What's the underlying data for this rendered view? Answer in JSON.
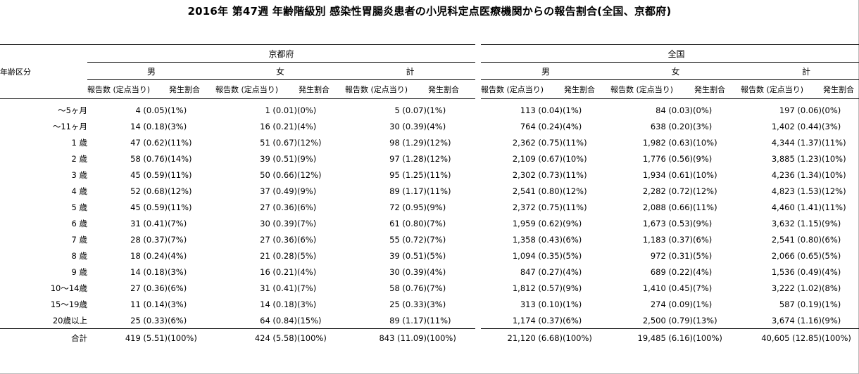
{
  "title": "2016年 第47週 年齢階級別 感染性胃腸炎患者の小児科定点医療機関からの報告割合(全国、京都府)",
  "header": {
    "age_label": "年齢区分",
    "regions": [
      "京都府",
      "全国"
    ],
    "sexes": [
      "男",
      "女",
      "計"
    ],
    "count_label": "報告数 (定点当り)",
    "rate_label": "発生割合"
  },
  "rows": [
    {
      "age": "～5ヶ月",
      "kyoto": [
        [
          "4 (0.05)",
          "(1%)"
        ],
        [
          "1 (0.01)",
          "(0%)"
        ],
        [
          "5 (0.07)",
          "(1%)"
        ]
      ],
      "national": [
        [
          "113 (0.04)",
          "(1%)"
        ],
        [
          "84 (0.03)",
          "(0%)"
        ],
        [
          "197 (0.06)",
          "(0%)"
        ]
      ]
    },
    {
      "age": "～11ヶ月",
      "kyoto": [
        [
          "14 (0.18)",
          "(3%)"
        ],
        [
          "16 (0.21)",
          "(4%)"
        ],
        [
          "30 (0.39)",
          "(4%)"
        ]
      ],
      "national": [
        [
          "764 (0.24)",
          "(4%)"
        ],
        [
          "638 (0.20)",
          "(3%)"
        ],
        [
          "1,402 (0.44)",
          "(3%)"
        ]
      ]
    },
    {
      "age": "1 歳",
      "kyoto": [
        [
          "47 (0.62)",
          "(11%)"
        ],
        [
          "51 (0.67)",
          "(12%)"
        ],
        [
          "98 (1.29)",
          "(12%)"
        ]
      ],
      "national": [
        [
          "2,362 (0.75)",
          "(11%)"
        ],
        [
          "1,982 (0.63)",
          "(10%)"
        ],
        [
          "4,344 (1.37)",
          "(11%)"
        ]
      ]
    },
    {
      "age": "2 歳",
      "kyoto": [
        [
          "58 (0.76)",
          "(14%)"
        ],
        [
          "39 (0.51)",
          "(9%)"
        ],
        [
          "97 (1.28)",
          "(12%)"
        ]
      ],
      "national": [
        [
          "2,109 (0.67)",
          "(10%)"
        ],
        [
          "1,776 (0.56)",
          "(9%)"
        ],
        [
          "3,885 (1.23)",
          "(10%)"
        ]
      ]
    },
    {
      "age": "3 歳",
      "kyoto": [
        [
          "45 (0.59)",
          "(11%)"
        ],
        [
          "50 (0.66)",
          "(12%)"
        ],
        [
          "95 (1.25)",
          "(11%)"
        ]
      ],
      "national": [
        [
          "2,302 (0.73)",
          "(11%)"
        ],
        [
          "1,934 (0.61)",
          "(10%)"
        ],
        [
          "4,236 (1.34)",
          "(10%)"
        ]
      ]
    },
    {
      "age": "4 歳",
      "kyoto": [
        [
          "52 (0.68)",
          "(12%)"
        ],
        [
          "37 (0.49)",
          "(9%)"
        ],
        [
          "89 (1.17)",
          "(11%)"
        ]
      ],
      "national": [
        [
          "2,541 (0.80)",
          "(12%)"
        ],
        [
          "2,282 (0.72)",
          "(12%)"
        ],
        [
          "4,823 (1.53)",
          "(12%)"
        ]
      ]
    },
    {
      "age": "5 歳",
      "kyoto": [
        [
          "45 (0.59)",
          "(11%)"
        ],
        [
          "27 (0.36)",
          "(6%)"
        ],
        [
          "72 (0.95)",
          "(9%)"
        ]
      ],
      "national": [
        [
          "2,372 (0.75)",
          "(11%)"
        ],
        [
          "2,088 (0.66)",
          "(11%)"
        ],
        [
          "4,460 (1.41)",
          "(11%)"
        ]
      ]
    },
    {
      "age": "6 歳",
      "kyoto": [
        [
          "31 (0.41)",
          "(7%)"
        ],
        [
          "30 (0.39)",
          "(7%)"
        ],
        [
          "61 (0.80)",
          "(7%)"
        ]
      ],
      "national": [
        [
          "1,959 (0.62)",
          "(9%)"
        ],
        [
          "1,673 (0.53)",
          "(9%)"
        ],
        [
          "3,632 (1.15)",
          "(9%)"
        ]
      ]
    },
    {
      "age": "7 歳",
      "kyoto": [
        [
          "28 (0.37)",
          "(7%)"
        ],
        [
          "27 (0.36)",
          "(6%)"
        ],
        [
          "55 (0.72)",
          "(7%)"
        ]
      ],
      "national": [
        [
          "1,358 (0.43)",
          "(6%)"
        ],
        [
          "1,183 (0.37)",
          "(6%)"
        ],
        [
          "2,541 (0.80)",
          "(6%)"
        ]
      ]
    },
    {
      "age": "8 歳",
      "kyoto": [
        [
          "18 (0.24)",
          "(4%)"
        ],
        [
          "21 (0.28)",
          "(5%)"
        ],
        [
          "39 (0.51)",
          "(5%)"
        ]
      ],
      "national": [
        [
          "1,094 (0.35)",
          "(5%)"
        ],
        [
          "972 (0.31)",
          "(5%)"
        ],
        [
          "2,066 (0.65)",
          "(5%)"
        ]
      ]
    },
    {
      "age": "9 歳",
      "kyoto": [
        [
          "14 (0.18)",
          "(3%)"
        ],
        [
          "16 (0.21)",
          "(4%)"
        ],
        [
          "30 (0.39)",
          "(4%)"
        ]
      ],
      "national": [
        [
          "847 (0.27)",
          "(4%)"
        ],
        [
          "689 (0.22)",
          "(4%)"
        ],
        [
          "1,536 (0.49)",
          "(4%)"
        ]
      ]
    },
    {
      "age": "10～14歳",
      "kyoto": [
        [
          "27 (0.36)",
          "(6%)"
        ],
        [
          "31 (0.41)",
          "(7%)"
        ],
        [
          "58 (0.76)",
          "(7%)"
        ]
      ],
      "national": [
        [
          "1,812 (0.57)",
          "(9%)"
        ],
        [
          "1,410 (0.45)",
          "(7%)"
        ],
        [
          "3,222 (1.02)",
          "(8%)"
        ]
      ]
    },
    {
      "age": "15～19歳",
      "kyoto": [
        [
          "11 (0.14)",
          "(3%)"
        ],
        [
          "14 (0.18)",
          "(3%)"
        ],
        [
          "25 (0.33)",
          "(3%)"
        ]
      ],
      "national": [
        [
          "313 (0.10)",
          "(1%)"
        ],
        [
          "274 (0.09)",
          "(1%)"
        ],
        [
          "587 (0.19)",
          "(1%)"
        ]
      ]
    },
    {
      "age": "20歳以上",
      "kyoto": [
        [
          "25 (0.33)",
          "(6%)"
        ],
        [
          "64 (0.84)",
          "(15%)"
        ],
        [
          "89 (1.17)",
          "(11%)"
        ]
      ],
      "national": [
        [
          "1,174 (0.37)",
          "(6%)"
        ],
        [
          "2,500 (0.79)",
          "(13%)"
        ],
        [
          "3,674 (1.16)",
          "(9%)"
        ]
      ]
    }
  ],
  "total": {
    "age": "合計",
    "kyoto": [
      [
        "419 (5.51)",
        "(100%)"
      ],
      [
        "424 (5.58)",
        "(100%)"
      ],
      [
        "843 (11.09)",
        "(100%)"
      ]
    ],
    "national": [
      [
        "21,120 (6.68)",
        "(100%)"
      ],
      [
        "19,485 (6.16)",
        "(100%)"
      ],
      [
        "40,605 (12.85)",
        "(100%)"
      ]
    ]
  }
}
